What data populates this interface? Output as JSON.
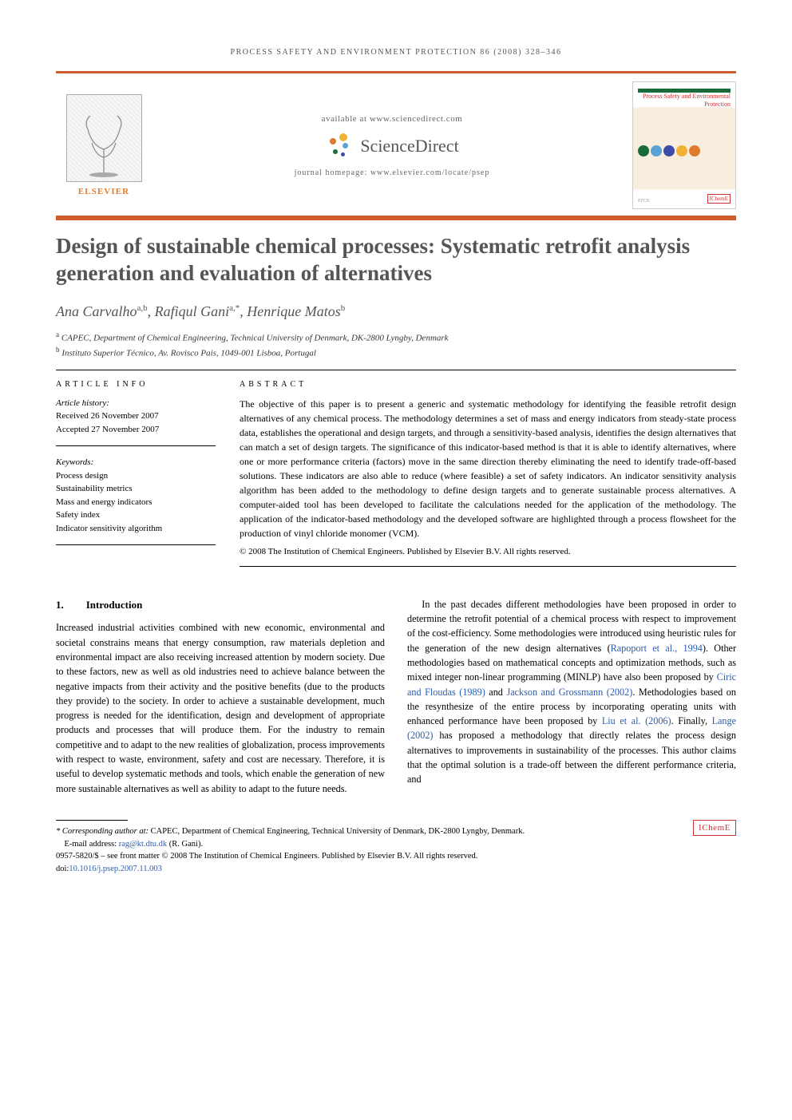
{
  "colors": {
    "orange_bar": "#d15c2b",
    "elsevier_orange": "#e67a2e",
    "title_gray": "#555555",
    "link_blue": "#2a5db0",
    "icheme_red": "#c33333",
    "journal_green": "#1a6b3a"
  },
  "typography": {
    "title_fontsize_pt": 20,
    "body_fontsize_pt": 9,
    "authors_fontsize_pt": 13
  },
  "running_header": "process safety and environment protection 86 (2008) 328–346",
  "masthead": {
    "elsevier_label": "ELSEVIER",
    "available_line": "available at www.sciencedirect.com",
    "sciencedirect_label": "ScienceDirect",
    "homepage_line": "journal homepage: www.elsevier.com/locate/psep",
    "journal_cover_title": "Process Safety and Environmental Protection",
    "cover_circle_colors": [
      "#1a6b3a",
      "#5aa3d8",
      "#3b4da9",
      "#f2b134",
      "#e07a2e"
    ]
  },
  "title": "Design of sustainable chemical processes: Systematic retrofit analysis generation and evaluation of alternatives",
  "authors_html": "Ana Carvalho<sup>a,b</sup>, Rafiqul Gani<sup>a,*</sup>, Henrique Matos<sup>b</sup>",
  "affiliations": {
    "a": "CAPEC, Department of Chemical Engineering, Technical University of Denmark, DK-2800 Lyngby, Denmark",
    "b": "Instituto Superior Técnico, Av. Rovisco Pais, 1049-001 Lisboa, Portugal"
  },
  "article_info": {
    "heading": "ARTICLE INFO",
    "history_label": "Article history:",
    "received": "Received 26 November 2007",
    "accepted": "Accepted 27 November 2007",
    "keywords_label": "Keywords:",
    "keywords": [
      "Process design",
      "Sustainability metrics",
      "Mass and energy indicators",
      "Safety index",
      "Indicator sensitivity algorithm"
    ]
  },
  "abstract": {
    "heading": "ABSTRACT",
    "text": "The objective of this paper is to present a generic and systematic methodology for identifying the feasible retrofit design alternatives of any chemical process. The methodology determines a set of mass and energy indicators from steady-state process data, establishes the operational and design targets, and through a sensitivity-based analysis, identifies the design alternatives that can match a set of design targets. The significance of this indicator-based method is that it is able to identify alternatives, where one or more performance criteria (factors) move in the same direction thereby eliminating the need to identify trade-off-based solutions. These indicators are also able to reduce (where feasible) a set of safety indicators. An indicator sensitivity analysis algorithm has been added to the methodology to define design targets and to generate sustainable process alternatives. A computer-aided tool has been developed to facilitate the calculations needed for the application of the methodology. The application of the indicator-based methodology and the developed software are highlighted through a process flowsheet for the production of vinyl chloride monomer (VCM).",
    "copyright": "© 2008 The Institution of Chemical Engineers. Published by Elsevier B.V. All rights reserved."
  },
  "section1": {
    "number": "1.",
    "heading": "Introduction",
    "para1": "Increased industrial activities combined with new economic, environmental and societal constrains means that energy consumption, raw materials depletion and environmental impact are also receiving increased attention by modern society. Due to these factors, new as well as old industries need to achieve balance between the negative impacts from their activity and the positive benefits (due to the products they provide) to the society. In order to achieve a sustainable development, much progress is needed for the identification, design and development of appropriate products and processes that will produce them. For the industry to remain competitive and to adapt to the new realities of globalization, process improvements with respect to waste, environment, safety and cost are necessary. Therefore, it is useful to develop systematic methods and tools, which enable the generation of new more sustainable alternatives as well as ability to adapt to the future needs.",
    "para2_pre": "In the past decades different methodologies have been proposed in order to determine the retrofit potential of a chemical process with respect to improvement of the cost-efficiency. Some methodologies were introduced using heuristic rules for the generation of the new design alternatives (",
    "ref1": "Rapoport et al., 1994",
    "para2_mid1": "). Other methodologies based on mathematical concepts and optimization methods, such as mixed integer non-linear programming (MINLP) have also been proposed by ",
    "ref2": "Ciric and Floudas (1989)",
    "and": " and ",
    "ref3": "Jackson and Grossmann (2002)",
    "para2_mid2": ". Methodologies based on the resynthesize of the entire process by incorporating operating units with enhanced performance have been proposed by ",
    "ref4": "Liu et al. (2006)",
    "para2_mid3": ". Finally, ",
    "ref5": "Lange (2002)",
    "para2_end": " has proposed a methodology that directly relates the process design alternatives to improvements in sustainability of the processes. This author claims that the optimal solution is a trade-off between the different performance criteria, and"
  },
  "footnote": {
    "corresponding_label": "* Corresponding author at:",
    "corresponding_text": " CAPEC, Department of Chemical Engineering, Technical University of Denmark, DK-2800 Lyngby, Denmark.",
    "email_label": "E-mail address: ",
    "email": "rag@kt.dtu.dk",
    "email_paren": " (R. Gani).",
    "front_matter": "0957-5820/$ – see front matter © 2008 The Institution of Chemical Engineers. Published by Elsevier B.V. All rights reserved.",
    "doi_label": "doi:",
    "doi": "10.1016/j.psep.2007.11.003",
    "icheme": "IChemE"
  }
}
